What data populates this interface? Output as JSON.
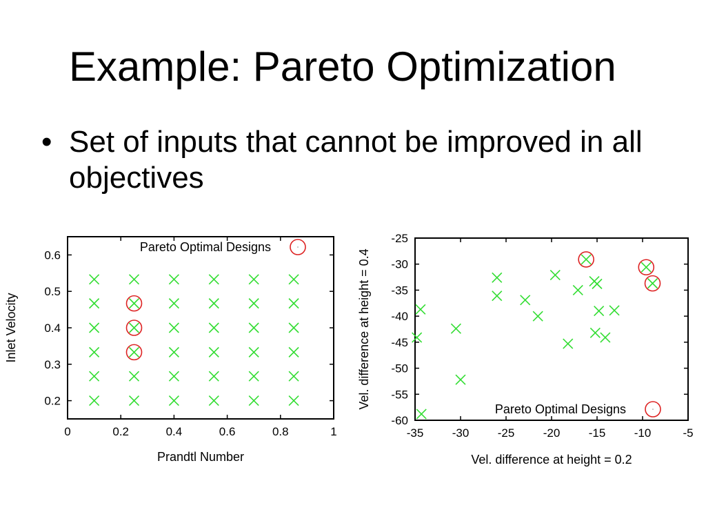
{
  "slide": {
    "title": "Example: Pareto Optimization",
    "bullets": [
      {
        "marker": "•",
        "text": "Set of inputs that cannot be improved in all objectives"
      }
    ]
  },
  "colors": {
    "design_point": "#33dd33",
    "pareto_marker": "#dd2222",
    "frame": "#000000"
  },
  "chart_data": [
    {
      "type": "scatter",
      "xlabel": "Prandtl Number",
      "ylabel": "Inlet Velocity",
      "xlim": [
        0,
        1
      ],
      "ylim": [
        0.15,
        0.65
      ],
      "xticks": [
        "0",
        "0.2",
        "0.4",
        "0.6",
        "0.8",
        "1"
      ],
      "xtick_values": [
        0,
        0.2,
        0.4,
        0.6,
        0.8,
        1
      ],
      "yticks": [
        "0.2",
        "0.3",
        "0.4",
        "0.5",
        "0.6"
      ],
      "ytick_values": [
        0.2,
        0.3,
        0.4,
        0.5,
        0.6
      ],
      "legend": {
        "label": "Pareto Optimal Designs",
        "position": "top-right"
      },
      "points": [
        [
          0.1,
          0.2
        ],
        [
          0.1,
          0.267
        ],
        [
          0.1,
          0.333
        ],
        [
          0.1,
          0.4
        ],
        [
          0.1,
          0.467
        ],
        [
          0.1,
          0.533
        ],
        [
          0.25,
          0.2
        ],
        [
          0.25,
          0.267
        ],
        [
          0.25,
          0.333
        ],
        [
          0.25,
          0.4
        ],
        [
          0.25,
          0.467
        ],
        [
          0.25,
          0.533
        ],
        [
          0.4,
          0.2
        ],
        [
          0.4,
          0.267
        ],
        [
          0.4,
          0.333
        ],
        [
          0.4,
          0.4
        ],
        [
          0.4,
          0.467
        ],
        [
          0.4,
          0.533
        ],
        [
          0.55,
          0.2
        ],
        [
          0.55,
          0.267
        ],
        [
          0.55,
          0.333
        ],
        [
          0.55,
          0.4
        ],
        [
          0.55,
          0.467
        ],
        [
          0.55,
          0.533
        ],
        [
          0.7,
          0.2
        ],
        [
          0.7,
          0.267
        ],
        [
          0.7,
          0.333
        ],
        [
          0.7,
          0.4
        ],
        [
          0.7,
          0.467
        ],
        [
          0.7,
          0.533
        ],
        [
          0.85,
          0.2
        ],
        [
          0.85,
          0.267
        ],
        [
          0.85,
          0.333
        ],
        [
          0.85,
          0.4
        ],
        [
          0.85,
          0.467
        ],
        [
          0.85,
          0.533
        ]
      ],
      "pareto": [
        [
          0.25,
          0.467
        ],
        [
          0.25,
          0.4
        ],
        [
          0.25,
          0.333
        ]
      ]
    },
    {
      "type": "scatter",
      "xlabel": "Vel. difference at height = 0.2",
      "ylabel": "Vel. difference at height = 0.4",
      "xlim": [
        -35,
        -5
      ],
      "ylim": [
        -60,
        -25
      ],
      "xticks": [
        "-35",
        "-30",
        "-25",
        "-20",
        "-15",
        "-10",
        "-5"
      ],
      "xtick_values": [
        -35,
        -30,
        -25,
        -20,
        -15,
        -10,
        -5
      ],
      "yticks": [
        "-25",
        "-30",
        "-35",
        "-40",
        "-45",
        "-50",
        "-55",
        "-60"
      ],
      "ytick_values": [
        -25,
        -30,
        -35,
        -40,
        -45,
        -50,
        -55,
        -60
      ],
      "legend": {
        "label": "Pareto Optimal Designs",
        "position": "bottom-right"
      },
      "points": [
        [
          -34.4,
          -38.7
        ],
        [
          -34.8,
          -44.1
        ],
        [
          -34.3,
          -58.8
        ],
        [
          -30.5,
          -42.4
        ],
        [
          -30.0,
          -52.2
        ],
        [
          -26.0,
          -32.6
        ],
        [
          -26.0,
          -36.1
        ],
        [
          -22.9,
          -36.9
        ],
        [
          -21.5,
          -40.0
        ],
        [
          -19.6,
          -32.1
        ],
        [
          -18.2,
          -45.3
        ],
        [
          -17.1,
          -35.0
        ],
        [
          -16.2,
          -29.1
        ],
        [
          -15.3,
          -33.3
        ],
        [
          -15.0,
          -33.8
        ],
        [
          -15.2,
          -43.2
        ],
        [
          -14.8,
          -39.0
        ],
        [
          -14.1,
          -44.1
        ],
        [
          -13.1,
          -38.9
        ],
        [
          -9.6,
          -30.6
        ],
        [
          -8.9,
          -33.7
        ]
      ],
      "pareto": [
        [
          -16.2,
          -29.1
        ],
        [
          -9.6,
          -30.6
        ],
        [
          -8.9,
          -33.7
        ]
      ]
    }
  ]
}
